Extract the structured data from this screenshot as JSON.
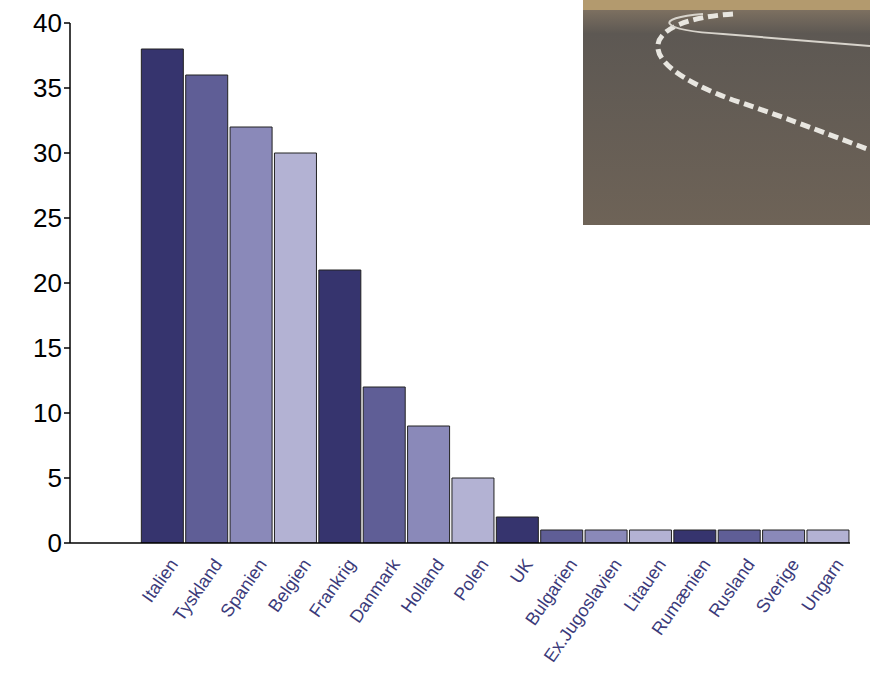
{
  "chart_data": {
    "type": "bar",
    "categories": [
      "Italien",
      "Tyskland",
      "Spanien",
      "Belgien",
      "Frankrig",
      "Danmark",
      "Holland",
      "Polen",
      "UK",
      "Bulgarien",
      "Ex.Jugoslavien",
      "Litauen",
      "Rumænien",
      "Rusland",
      "Sverige",
      "Ungarn"
    ],
    "values": [
      38,
      36,
      32,
      30,
      21,
      12,
      9,
      5,
      2,
      1,
      1,
      1,
      1,
      1,
      1,
      1
    ],
    "colors": [
      "#36346e",
      "#5f5e96",
      "#8a89b9",
      "#b3b2d3",
      "#36346e",
      "#5f5e96",
      "#8a89b9",
      "#b3b2d3",
      "#36346e",
      "#5f5e96",
      "#8a89b9",
      "#b3b2d3",
      "#36346e",
      "#5f5e96",
      "#8a89b9",
      "#b3b2d3"
    ],
    "ylim": [
      0,
      40
    ],
    "yticks": [
      0,
      5,
      10,
      15,
      20,
      25,
      30,
      35,
      40
    ],
    "grid": false
  }
}
